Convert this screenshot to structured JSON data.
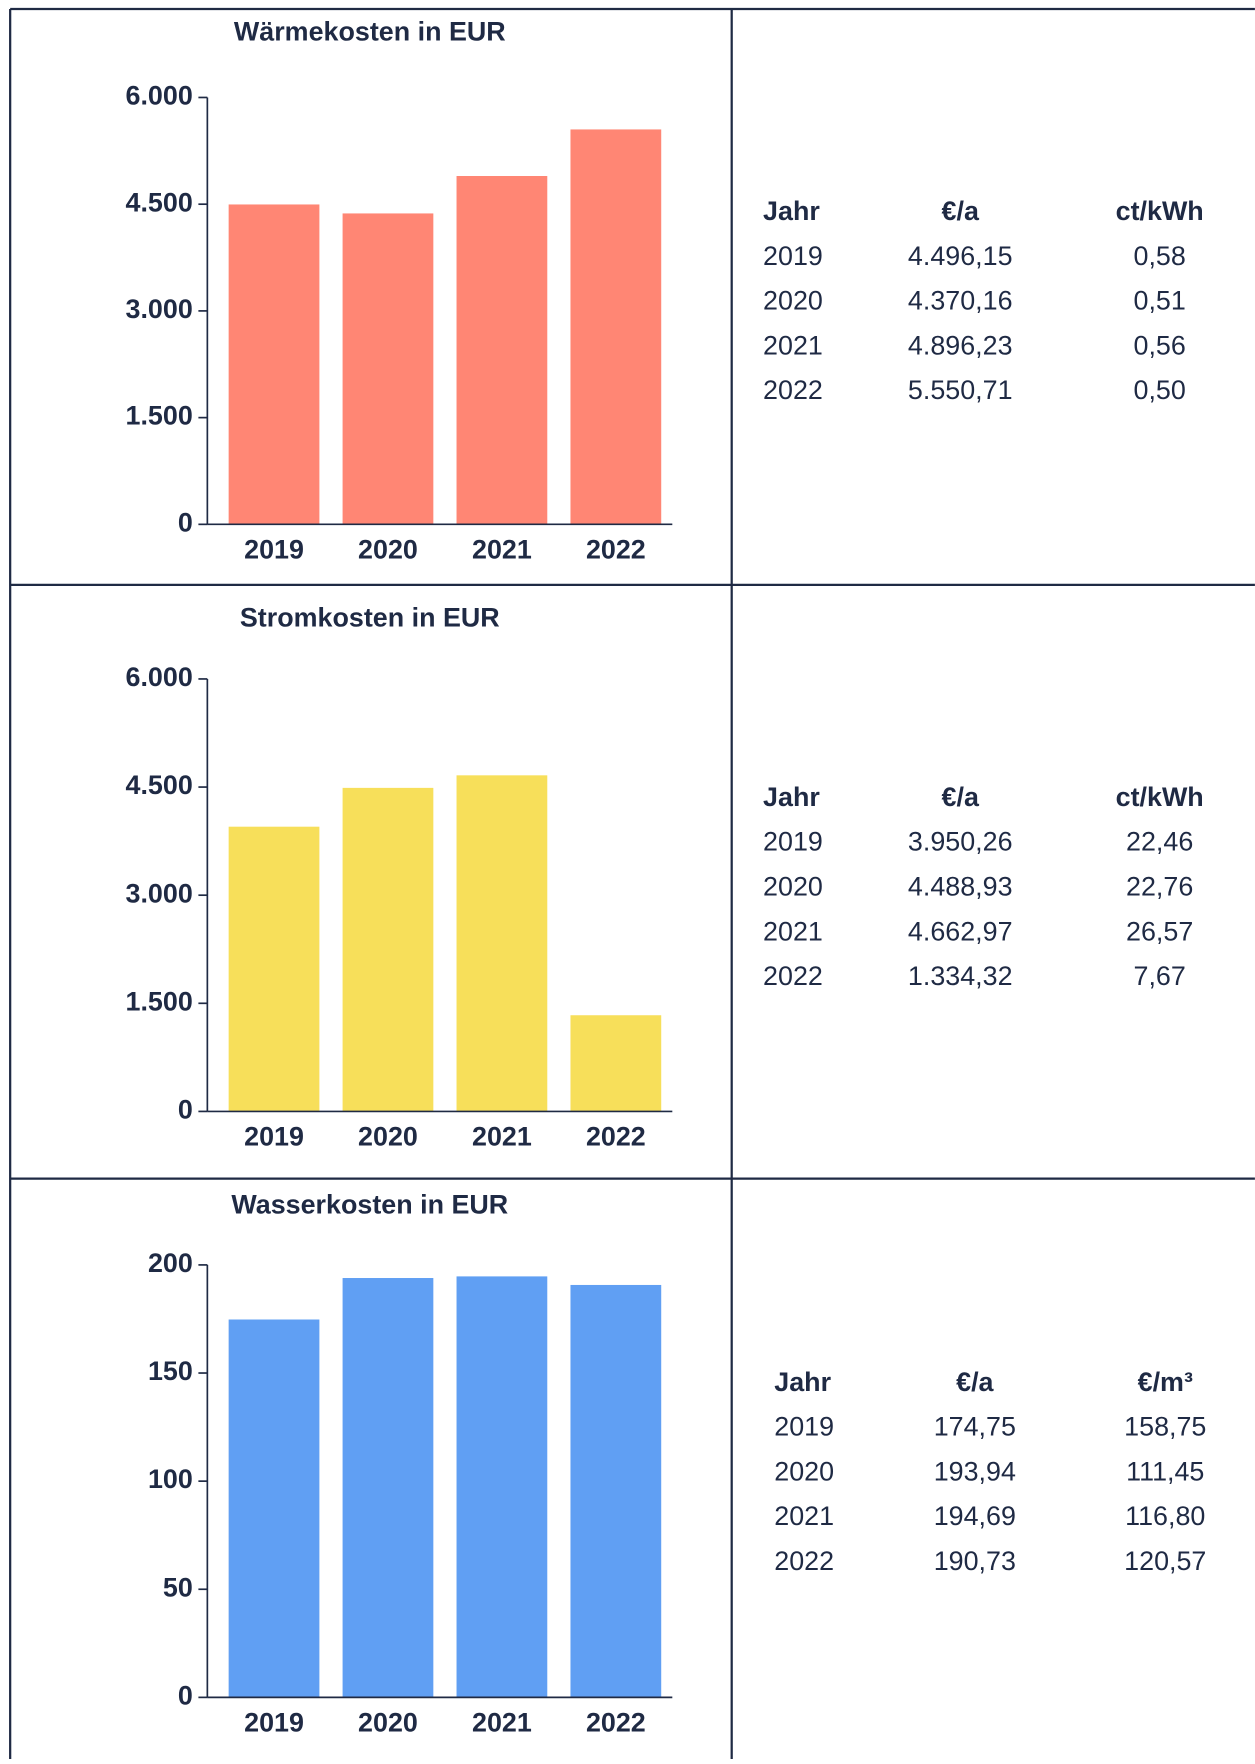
{
  "chart_data": [
    {
      "type": "bar",
      "title": "Wärmekosten in EUR",
      "categories": [
        "2019",
        "2020",
        "2021",
        "2022"
      ],
      "values": [
        4496.15,
        4370.16,
        4896.23,
        5550.71
      ],
      "color": "#ff8674",
      "ylim": [
        0,
        6000
      ],
      "yticks": [
        0,
        {
          "value": 1500,
          "label": "1.500"
        },
        {
          "value": 3000,
          "label": "3.000"
        },
        {
          "value": 4500,
          "label": "4.500"
        },
        {
          "value": 6000,
          "label": "6.000"
        }
      ]
    },
    {
      "type": "bar",
      "title": "Stromkosten in EUR",
      "categories": [
        "2019",
        "2020",
        "2021",
        "2022"
      ],
      "values": [
        3950.26,
        4488.93,
        4662.97,
        1334.32
      ],
      "color": "#f7df5a",
      "ylim": [
        0,
        6000
      ],
      "yticks": [
        0,
        {
          "value": 1500,
          "label": "1.500"
        },
        {
          "value": 3000,
          "label": "3.000"
        },
        {
          "value": 4500,
          "label": "4.500"
        },
        {
          "value": 6000,
          "label": "6.000"
        }
      ]
    },
    {
      "type": "bar",
      "title": "Wasserkosten in EUR",
      "categories": [
        "2019",
        "2020",
        "2021",
        "2022"
      ],
      "values": [
        174.75,
        193.94,
        194.69,
        190.73
      ],
      "color": "#609ff3",
      "ylim": [
        0,
        200
      ],
      "yticks": [
        0,
        50,
        100,
        150,
        200
      ]
    }
  ],
  "tables": [
    {
      "columns": [
        "Jahr",
        "€/a",
        "ct/kWh"
      ],
      "rows": [
        [
          "2019",
          "4.496,15",
          "0,58"
        ],
        [
          "2020",
          "4.370,16",
          "0,51"
        ],
        [
          "2021",
          "4.896,23",
          "0,56"
        ],
        [
          "2022",
          "5.550,71",
          "0,50"
        ]
      ]
    },
    {
      "columns": [
        "Jahr",
        "€/a",
        "ct/kWh"
      ],
      "rows": [
        [
          "2019",
          "3.950,26",
          "22,46"
        ],
        [
          "2020",
          "4.488,93",
          "22,76"
        ],
        [
          "2021",
          "4.662,97",
          "26,57"
        ],
        [
          "2022",
          "1.334,32",
          "7,67"
        ]
      ]
    },
    {
      "columns": [
        "Jahr",
        "€/a",
        "€/m³"
      ],
      "rows": [
        [
          "2019",
          "174,75",
          "158,75"
        ],
        [
          "2020",
          "193,94",
          "111,45"
        ],
        [
          "2021",
          "194,69",
          "116,80"
        ],
        [
          "2022",
          "190,73",
          "120,57"
        ]
      ]
    }
  ]
}
